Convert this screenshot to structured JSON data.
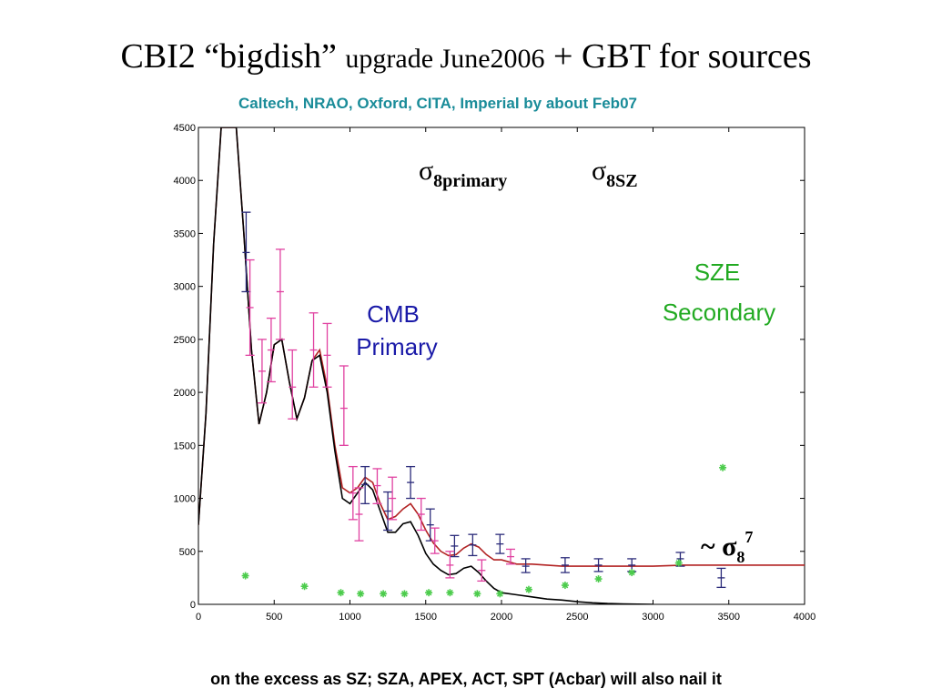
{
  "slide": {
    "title_main": "CBI2 “bigdish”",
    "title_small": "upgrade June2006",
    "title_end": "+ GBT for sources",
    "subtitle": "Caltech, NRAO, Oxford, CITA, Imperial by about Feb07",
    "footer": "on the excess as SZ; SZA, APEX, ACT, SPT (Acbar) will also nail it"
  },
  "annotations": {
    "sigma8primary_symbol": "σ",
    "sigma8primary_sub": "8primary",
    "sigma8sz_symbol": "σ",
    "sigma8sz_sub": "8SZ",
    "cmb_line1": "CMB",
    "cmb_line2": "Primary",
    "sze_line1": "SZE",
    "sze_line2": "Secondary",
    "scaling_prefix": "~ σ",
    "scaling_sub": "8",
    "scaling_sup": "7"
  },
  "colors": {
    "cmb_text": "#1a1aa8",
    "sze_text": "#22aa22",
    "subtitle": "#1a8c99",
    "red_curve": "#b22222",
    "black_curve": "#000000",
    "blue_points": "#2b2b7a",
    "magenta_points": "#e040a0",
    "green_stars": "#4ccc4c"
  },
  "chart_data": {
    "type": "scatter",
    "xlim": [
      0,
      4000
    ],
    "ylim": [
      0,
      4500
    ],
    "xticks": [
      "0",
      "500",
      "1000",
      "1500",
      "2000",
      "2500",
      "3000",
      "3500",
      "4000"
    ],
    "yticks": [
      "0",
      "500",
      "1000",
      "1500",
      "2000",
      "2500",
      "3000",
      "3500",
      "4000",
      "4500"
    ],
    "series": [
      {
        "kind": "line",
        "color_key": "red_curve",
        "x": [
          0,
          50,
          100,
          150,
          200,
          250,
          300,
          350,
          400,
          450,
          500,
          550,
          600,
          650,
          700,
          750,
          800,
          850,
          900,
          950,
          1000,
          1050,
          1100,
          1150,
          1200,
          1250,
          1300,
          1350,
          1400,
          1450,
          1500,
          1550,
          1600,
          1650,
          1700,
          1750,
          1800,
          1850,
          1900,
          1950,
          2000,
          2100,
          2200,
          2300,
          2400,
          2500,
          2600,
          2700,
          2800,
          2900,
          3000,
          3200,
          3400,
          3600,
          3800,
          4000
        ],
        "y": [
          750,
          1800,
          3400,
          4500,
          4500,
          4500,
          3500,
          2400,
          1700,
          2000,
          2450,
          2500,
          2100,
          1750,
          1950,
          2300,
          2400,
          2050,
          1500,
          1100,
          1050,
          1100,
          1200,
          1150,
          950,
          800,
          830,
          900,
          950,
          850,
          700,
          580,
          500,
          460,
          470,
          530,
          570,
          540,
          470,
          420,
          420,
          380,
          380,
          370,
          360,
          360,
          360,
          360,
          360,
          360,
          360,
          370,
          370,
          370,
          370,
          370
        ]
      },
      {
        "kind": "line",
        "color_key": "black_curve",
        "x": [
          0,
          50,
          100,
          150,
          200,
          250,
          300,
          350,
          400,
          450,
          500,
          550,
          600,
          650,
          700,
          750,
          800,
          850,
          900,
          950,
          1000,
          1050,
          1100,
          1150,
          1200,
          1250,
          1300,
          1350,
          1400,
          1450,
          1500,
          1550,
          1600,
          1650,
          1700,
          1750,
          1800,
          1850,
          1900,
          1950,
          2000,
          2100,
          2200,
          2300,
          2400,
          2500,
          2600,
          2700,
          2800,
          2900,
          3000
        ],
        "y": [
          750,
          1800,
          3400,
          4500,
          4500,
          4500,
          3500,
          2400,
          1700,
          2000,
          2450,
          2500,
          2100,
          1750,
          1950,
          2300,
          2350,
          2000,
          1450,
          1000,
          950,
          1050,
          1150,
          1080,
          880,
          680,
          680,
          760,
          780,
          650,
          480,
          380,
          320,
          280,
          290,
          340,
          360,
          300,
          220,
          150,
          110,
          90,
          70,
          50,
          40,
          25,
          15,
          8,
          4,
          2,
          0
        ]
      },
      {
        "kind": "errorbar",
        "color_key": "blue_points",
        "points": [
          {
            "x": 315,
            "y": 3320,
            "lo": 2950,
            "hi": 3700
          },
          {
            "x": 1100,
            "y": 1130,
            "lo": 950,
            "hi": 1300
          },
          {
            "x": 1250,
            "y": 880,
            "lo": 700,
            "hi": 1060
          },
          {
            "x": 1400,
            "y": 1150,
            "lo": 1000,
            "hi": 1300
          },
          {
            "x": 1530,
            "y": 750,
            "lo": 600,
            "hi": 900
          },
          {
            "x": 1690,
            "y": 550,
            "lo": 450,
            "hi": 650
          },
          {
            "x": 1810,
            "y": 560,
            "lo": 460,
            "hi": 660
          },
          {
            "x": 1990,
            "y": 570,
            "lo": 480,
            "hi": 660
          },
          {
            "x": 2160,
            "y": 360,
            "lo": 300,
            "hi": 430
          },
          {
            "x": 2420,
            "y": 370,
            "lo": 300,
            "hi": 440
          },
          {
            "x": 2640,
            "y": 370,
            "lo": 310,
            "hi": 430
          },
          {
            "x": 2860,
            "y": 370,
            "lo": 310,
            "hi": 430
          },
          {
            "x": 3180,
            "y": 430,
            "lo": 360,
            "hi": 490
          },
          {
            "x": 3450,
            "y": 250,
            "lo": 160,
            "hi": 340
          }
        ]
      },
      {
        "kind": "errorbar",
        "color_key": "magenta_points",
        "points": [
          {
            "x": 340,
            "y": 2800,
            "lo": 2350,
            "hi": 3250
          },
          {
            "x": 420,
            "y": 2200,
            "lo": 1900,
            "hi": 2500
          },
          {
            "x": 480,
            "y": 2400,
            "lo": 2100,
            "hi": 2700
          },
          {
            "x": 540,
            "y": 2950,
            "lo": 2500,
            "hi": 3350
          },
          {
            "x": 620,
            "y": 2050,
            "lo": 1750,
            "hi": 2400
          },
          {
            "x": 760,
            "y": 2400,
            "lo": 2050,
            "hi": 2750
          },
          {
            "x": 850,
            "y": 2350,
            "lo": 2050,
            "hi": 2650
          },
          {
            "x": 960,
            "y": 1850,
            "lo": 1500,
            "hi": 2250
          },
          {
            "x": 1020,
            "y": 1050,
            "lo": 800,
            "hi": 1300
          },
          {
            "x": 1060,
            "y": 850,
            "lo": 600,
            "hi": 1100
          },
          {
            "x": 1180,
            "y": 1120,
            "lo": 950,
            "hi": 1280
          },
          {
            "x": 1280,
            "y": 1000,
            "lo": 800,
            "hi": 1200
          },
          {
            "x": 1470,
            "y": 850,
            "lo": 700,
            "hi": 1000
          },
          {
            "x": 1560,
            "y": 600,
            "lo": 480,
            "hi": 720
          },
          {
            "x": 1660,
            "y": 370,
            "lo": 250,
            "hi": 500
          },
          {
            "x": 1870,
            "y": 320,
            "lo": 220,
            "hi": 420
          },
          {
            "x": 2060,
            "y": 450,
            "lo": 380,
            "hi": 520
          }
        ]
      },
      {
        "kind": "star",
        "color_key": "green_stars",
        "x": [
          310,
          700,
          940,
          1070,
          1220,
          1360,
          1520,
          1660,
          1840,
          1990,
          2180,
          2420,
          2640,
          2860,
          3170,
          3460
        ],
        "y": [
          270,
          170,
          110,
          100,
          100,
          100,
          110,
          110,
          100,
          100,
          140,
          180,
          240,
          300,
          390,
          1290
        ]
      }
    ]
  }
}
